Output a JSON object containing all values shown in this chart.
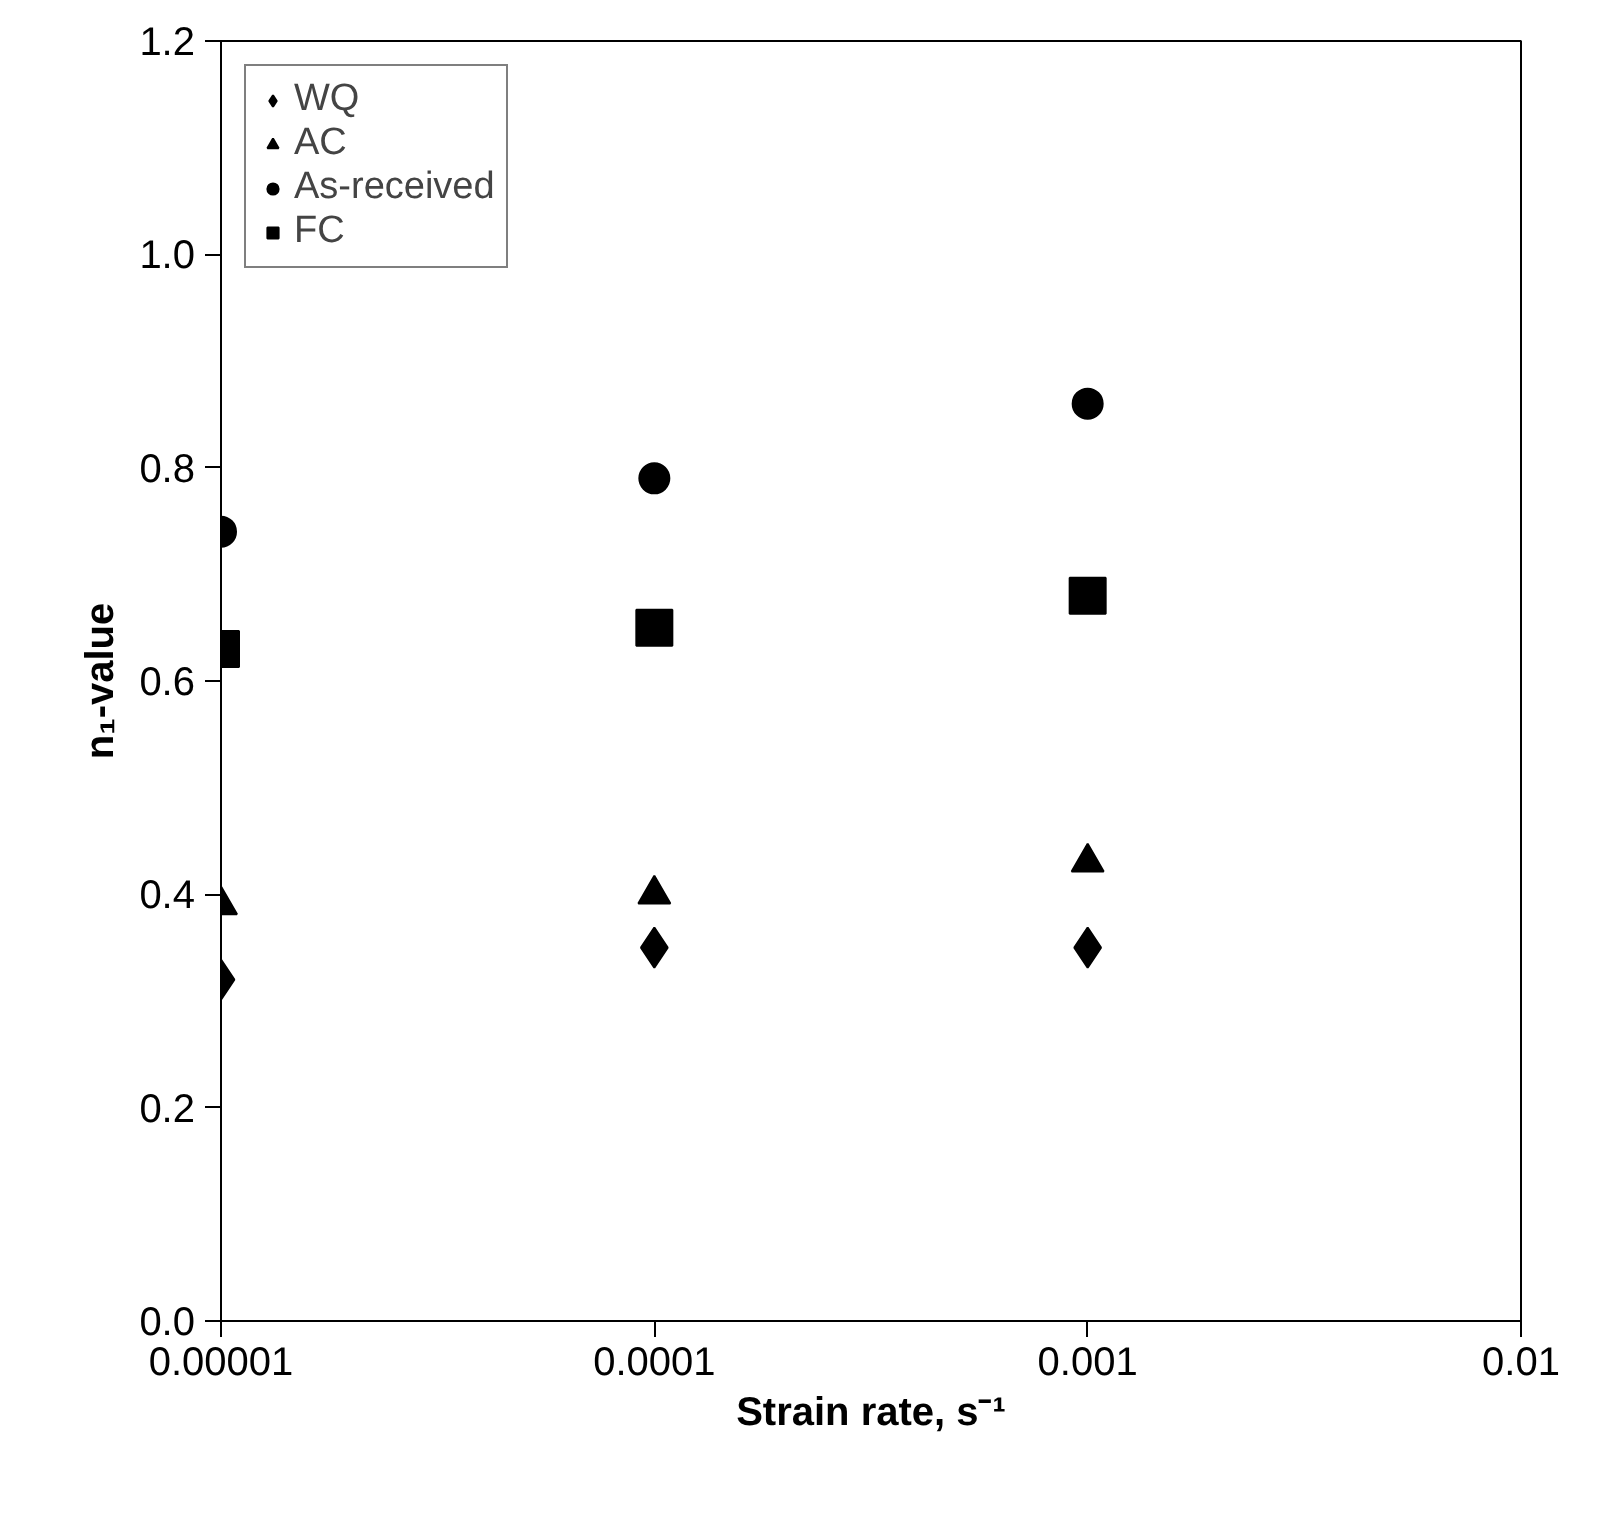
{
  "chart_data": {
    "type": "scatter",
    "xlabel": "Strain rate, s⁻¹",
    "ylabel": "n₁-value",
    "log": "x",
    "x": [
      1e-05,
      0.0001,
      0.001
    ],
    "xlim": [
      1e-05,
      0.01
    ],
    "xticks": [
      {
        "value": 1e-05,
        "label": "0.00001"
      },
      {
        "value": 0.0001,
        "label": "0.0001"
      },
      {
        "value": 0.001,
        "label": "0.001"
      },
      {
        "value": 0.01,
        "label": "0.01"
      }
    ],
    "ylim": [
      0,
      1.2
    ],
    "yticks": [
      {
        "value": 0,
        "label": "0.0"
      },
      {
        "value": 0.2,
        "label": "0.2"
      },
      {
        "value": 0.4,
        "label": "0.4"
      },
      {
        "value": 0.6,
        "label": "0.6"
      },
      {
        "value": 0.8,
        "label": "0.8"
      },
      {
        "value": 1.0,
        "label": "1.0"
      },
      {
        "value": 1.2,
        "label": "1.2"
      }
    ],
    "grid": false,
    "legend": "top left",
    "series": [
      {
        "name": "WQ",
        "color": "#000000",
        "marker": "diamond",
        "values": [
          0.32,
          0.35,
          0.35
        ]
      },
      {
        "name": "AC",
        "color": "#000000",
        "marker": "triangle",
        "values": [
          0.39,
          0.4,
          0.43
        ]
      },
      {
        "name": "As-received",
        "color": "#000000",
        "marker": "circle",
        "values": [
          0.74,
          0.79,
          0.86
        ]
      },
      {
        "name": "FC",
        "color": "#000000",
        "marker": "square",
        "values": [
          0.63,
          0.65,
          0.68
        ]
      }
    ]
  }
}
